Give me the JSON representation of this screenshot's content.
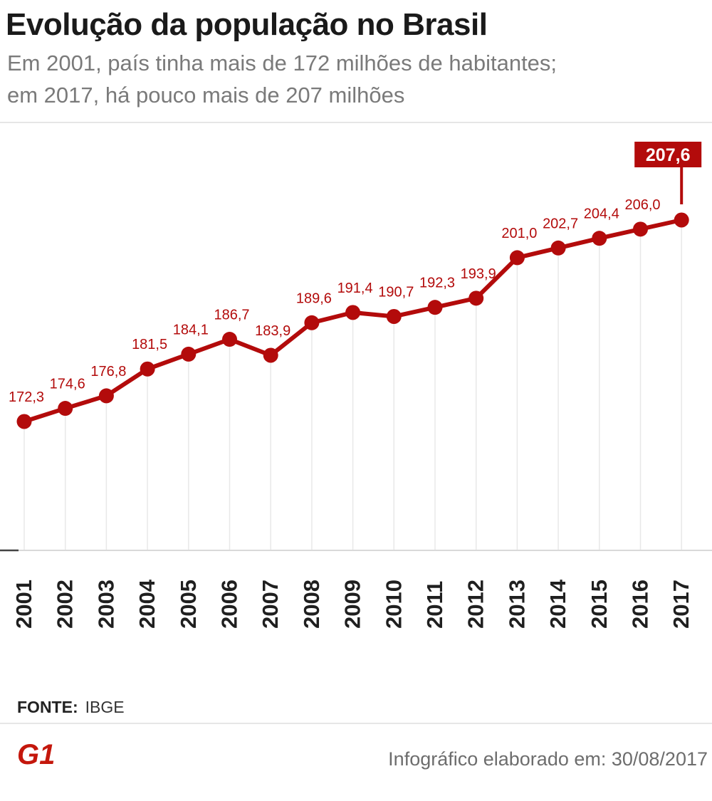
{
  "header": {
    "title": "Evolução da população no Brasil",
    "subtitle_line1": "Em 2001, país tinha mais de 172 milhões de habitantes;",
    "subtitle_line2": "em 2017, há pouco mais de 207 milhões"
  },
  "chart_data": {
    "type": "line",
    "title": "Evolução da população no Brasil",
    "xlabel": "",
    "ylabel": "",
    "unit": "milhões de habitantes",
    "categories": [
      "2001",
      "2002",
      "2003",
      "2004",
      "2005",
      "2006",
      "2007",
      "2008",
      "2009",
      "2010",
      "2011",
      "2012",
      "2013",
      "2014",
      "2015",
      "2016",
      "2017"
    ],
    "values": [
      172.3,
      174.6,
      176.8,
      181.5,
      184.1,
      186.7,
      183.9,
      189.6,
      191.4,
      190.7,
      192.3,
      193.9,
      201.0,
      202.7,
      204.4,
      206.0,
      207.6
    ],
    "labels": [
      "172,3",
      "174,6",
      "176,8",
      "181,5",
      "184,1",
      "186,7",
      "183,9",
      "189,6",
      "191,4",
      "190,7",
      "192,3",
      "193,9",
      "201,0",
      "202,7",
      "204,4",
      "206,0",
      "207,6"
    ],
    "highlight_index": 16,
    "ylim": [
      150,
      215
    ],
    "grid": true,
    "color": "#b30b0b"
  },
  "footer": {
    "source_label": "FONTE:",
    "source_value": "IBGE",
    "logo_text": "G1",
    "credit": "Infográfico elaborado em: 30/08/2017"
  },
  "colors": {
    "accent": "#b30b0b",
    "title": "#1a1a1a",
    "subtitle": "#7a7a7a"
  }
}
